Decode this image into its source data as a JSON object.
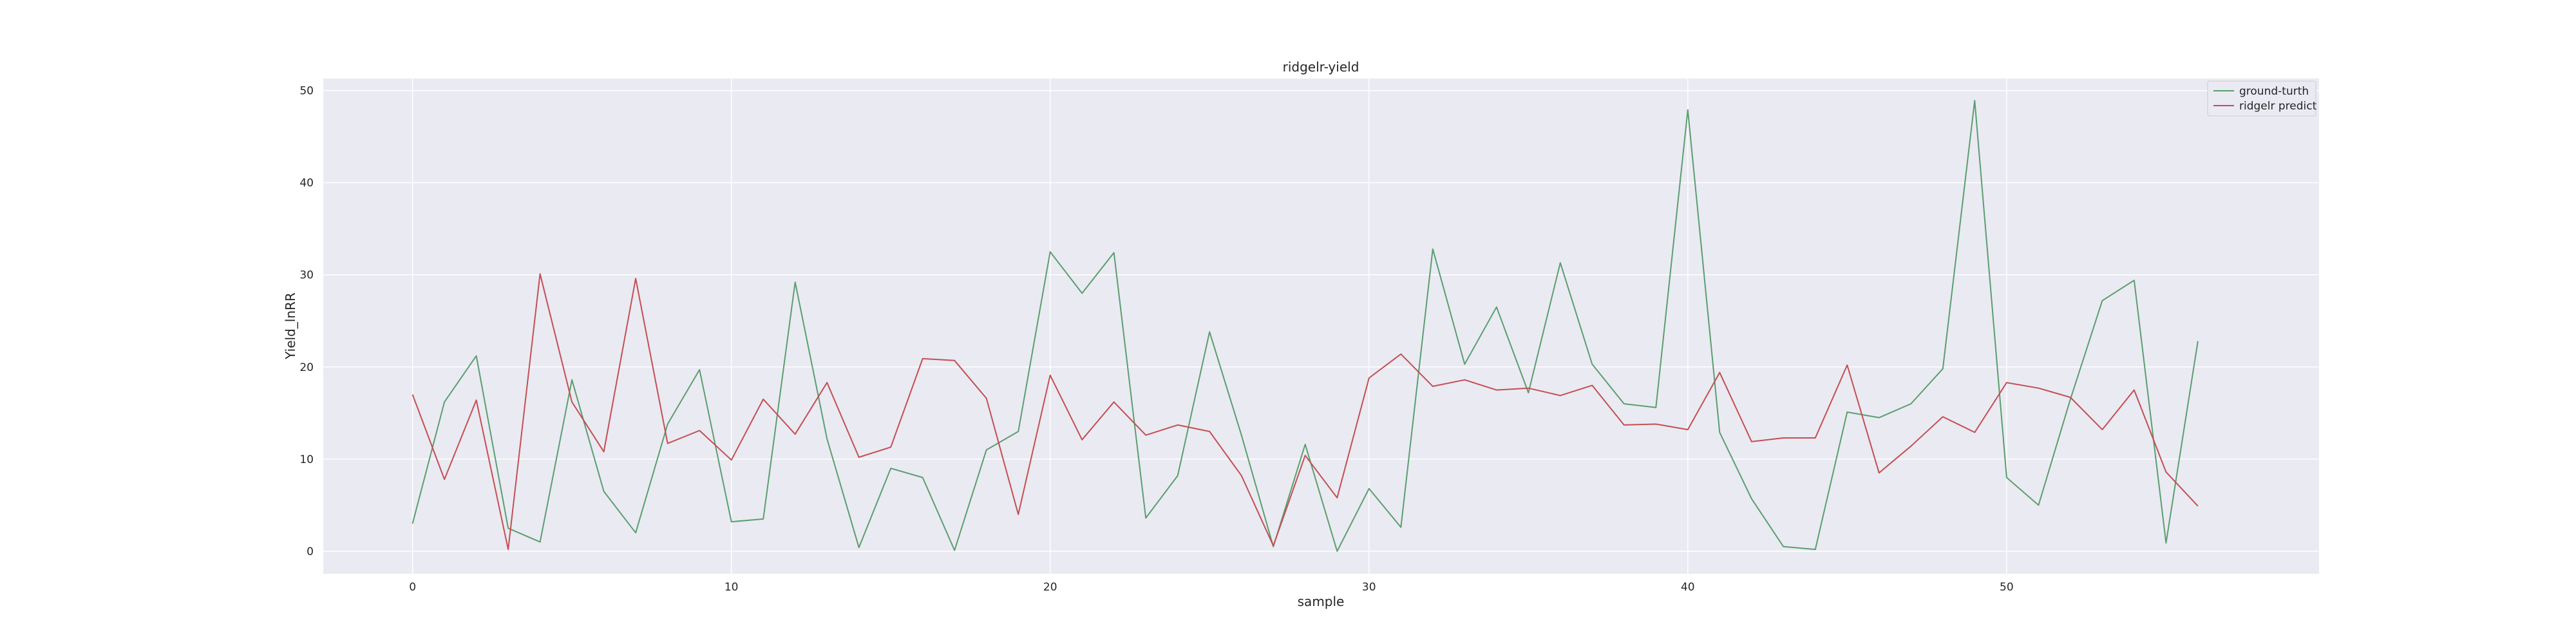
{
  "chart_data": {
    "type": "line",
    "title": "ridgelr-yield",
    "xlabel": "sample",
    "ylabel": "Yield_lnRR",
    "xlim": [
      -2.8,
      59.8
    ],
    "ylim": [
      -2.45,
      51.3
    ],
    "xticks": [
      0,
      10,
      20,
      30,
      40,
      50
    ],
    "yticks": [
      0,
      10,
      20,
      30,
      40,
      50
    ],
    "grid": true,
    "legend_position": "top-right",
    "x": [
      0,
      1,
      2,
      3,
      4,
      5,
      6,
      7,
      8,
      9,
      10,
      11,
      12,
      13,
      14,
      15,
      16,
      17,
      18,
      19,
      20,
      21,
      22,
      23,
      24,
      25,
      26,
      27,
      28,
      29,
      30,
      31,
      32,
      33,
      34,
      35,
      36,
      37,
      38,
      39,
      40,
      41,
      42,
      43,
      44,
      45,
      46,
      47,
      48,
      49,
      50,
      51,
      52,
      53,
      54,
      55,
      56
    ],
    "series": [
      {
        "name": "ground-turth",
        "color": "#5a9e6f",
        "values": [
          3,
          16.2,
          21.2,
          2.5,
          1,
          18.6,
          6.5,
          2,
          13.8,
          19.7,
          3.2,
          3.5,
          29.2,
          12.2,
          0.4,
          9,
          8,
          0.1,
          11,
          13,
          32.5,
          28,
          32.4,
          3.6,
          8.2,
          23.8,
          12.6,
          0.5,
          11.6,
          0,
          6.8,
          2.6,
          32.8,
          20.3,
          26.5,
          17.2,
          31.3,
          20.3,
          16,
          15.6,
          47.9,
          12.9,
          5.7,
          0.5,
          0.2,
          15.1,
          14.5,
          16,
          19.8,
          48.9,
          8,
          5,
          16.5,
          27.2,
          29.4,
          0.9,
          22.8
        ]
      },
      {
        "name": "ridgelr predict",
        "color": "#c44e52",
        "values": [
          17,
          7.8,
          16.4,
          0.2,
          30.1,
          16.2,
          10.8,
          29.6,
          11.7,
          13.1,
          9.9,
          16.5,
          12.7,
          18.3,
          10.2,
          11.3,
          20.9,
          20.7,
          16.6,
          4,
          19.1,
          12.1,
          16.2,
          12.6,
          13.7,
          13,
          8.2,
          0.6,
          10.4,
          5.8,
          18.8,
          21.4,
          17.9,
          18.6,
          17.5,
          17.7,
          16.9,
          18,
          13.7,
          13.8,
          13.2,
          19.4,
          11.9,
          12.3,
          12.3,
          20.2,
          8.5,
          11.4,
          14.6,
          12.9,
          18.3,
          17.7,
          16.7,
          13.2,
          17.5,
          8.6,
          4.9
        ]
      }
    ]
  }
}
